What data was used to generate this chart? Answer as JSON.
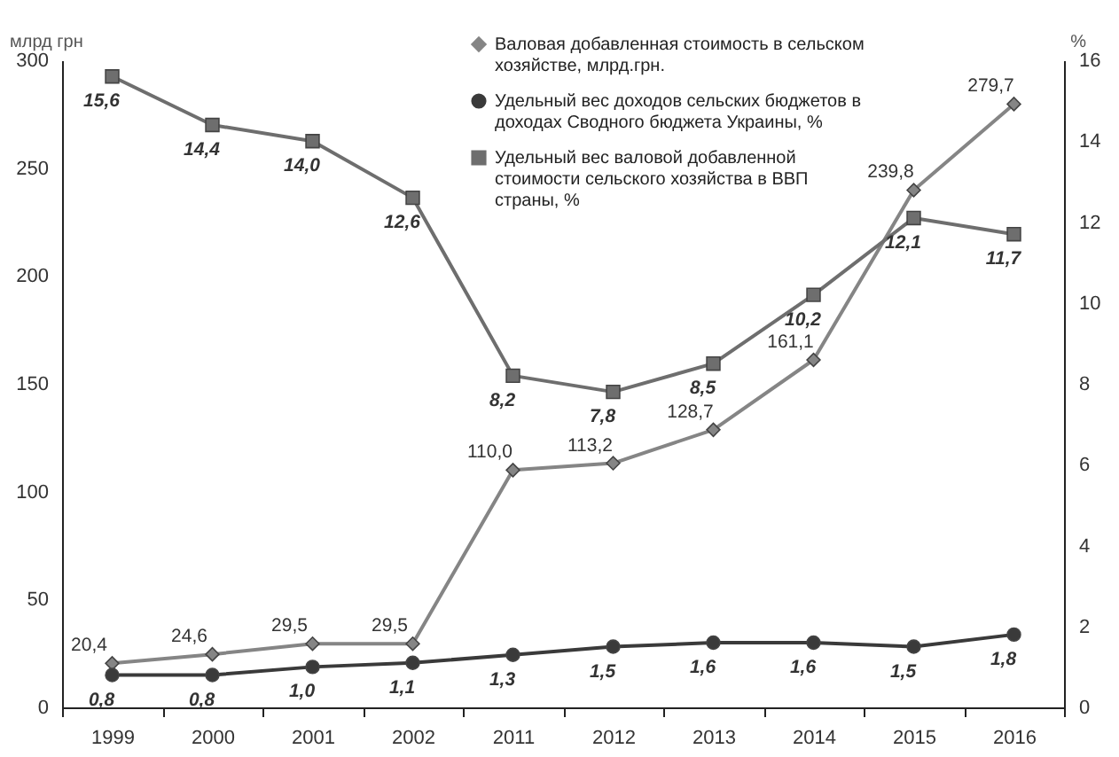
{
  "chart_data": {
    "type": "line",
    "ylabel": "млрд грн",
    "y2label": "%",
    "categories": [
      "1999",
      "2000",
      "2001",
      "2002",
      "2011",
      "2012",
      "2013",
      "2014",
      "2015",
      "2016"
    ],
    "series": [
      {
        "name": "Валовая добавленная стоимость в сельском хозяйстве, млрд.грн.",
        "color": "#858585",
        "marker": "diamond",
        "values": [
          20.4,
          24.6,
          29.5,
          29.5,
          110.0,
          113.2,
          128.7,
          161.1,
          239.8,
          279.7
        ],
        "value_labels": [
          "20,4",
          "24,6",
          "29,5",
          "29,5",
          "110,0",
          "113,2",
          "128,7",
          "161,1",
          "239,8",
          "279,7"
        ]
      },
      {
        "name": "Удельный вес доходов сельских бюджетов в доходах Сводного бюджета Украины, %",
        "color": "#3a3a3a",
        "marker": "circle",
        "axis": "y2",
        "values": [
          0.8,
          0.8,
          1.0,
          1.1,
          1.3,
          1.5,
          1.6,
          1.6,
          1.5,
          1.8
        ],
        "value_labels": [
          "0,8",
          "0,8",
          "1,0",
          "1,1",
          "1,3",
          "1,5",
          "1,6",
          "1,6",
          "1,5",
          "1,8"
        ]
      },
      {
        "name": "Удельный вес валовой добавленной стоимости сельского хозяйства в ВВП страны, %",
        "color": "#6e6e6e",
        "marker": "square",
        "axis": "y2",
        "values": [
          15.6,
          14.4,
          14.0,
          12.6,
          8.2,
          7.8,
          8.5,
          10.2,
          12.1,
          11.7
        ],
        "value_labels": [
          "15,6",
          "14,4",
          "14,0",
          "12,6",
          "8,2",
          "7,8",
          "8,5",
          "10,2",
          "12,1",
          "11,7"
        ]
      }
    ],
    "ylim": [
      0,
      300
    ],
    "yticks": [
      0,
      50,
      100,
      150,
      200,
      250,
      300
    ],
    "y2lim": [
      0,
      16
    ],
    "y2ticks": [
      0,
      2,
      4,
      6,
      8,
      10,
      12,
      14,
      16
    ],
    "legend": "top",
    "grid": false
  }
}
